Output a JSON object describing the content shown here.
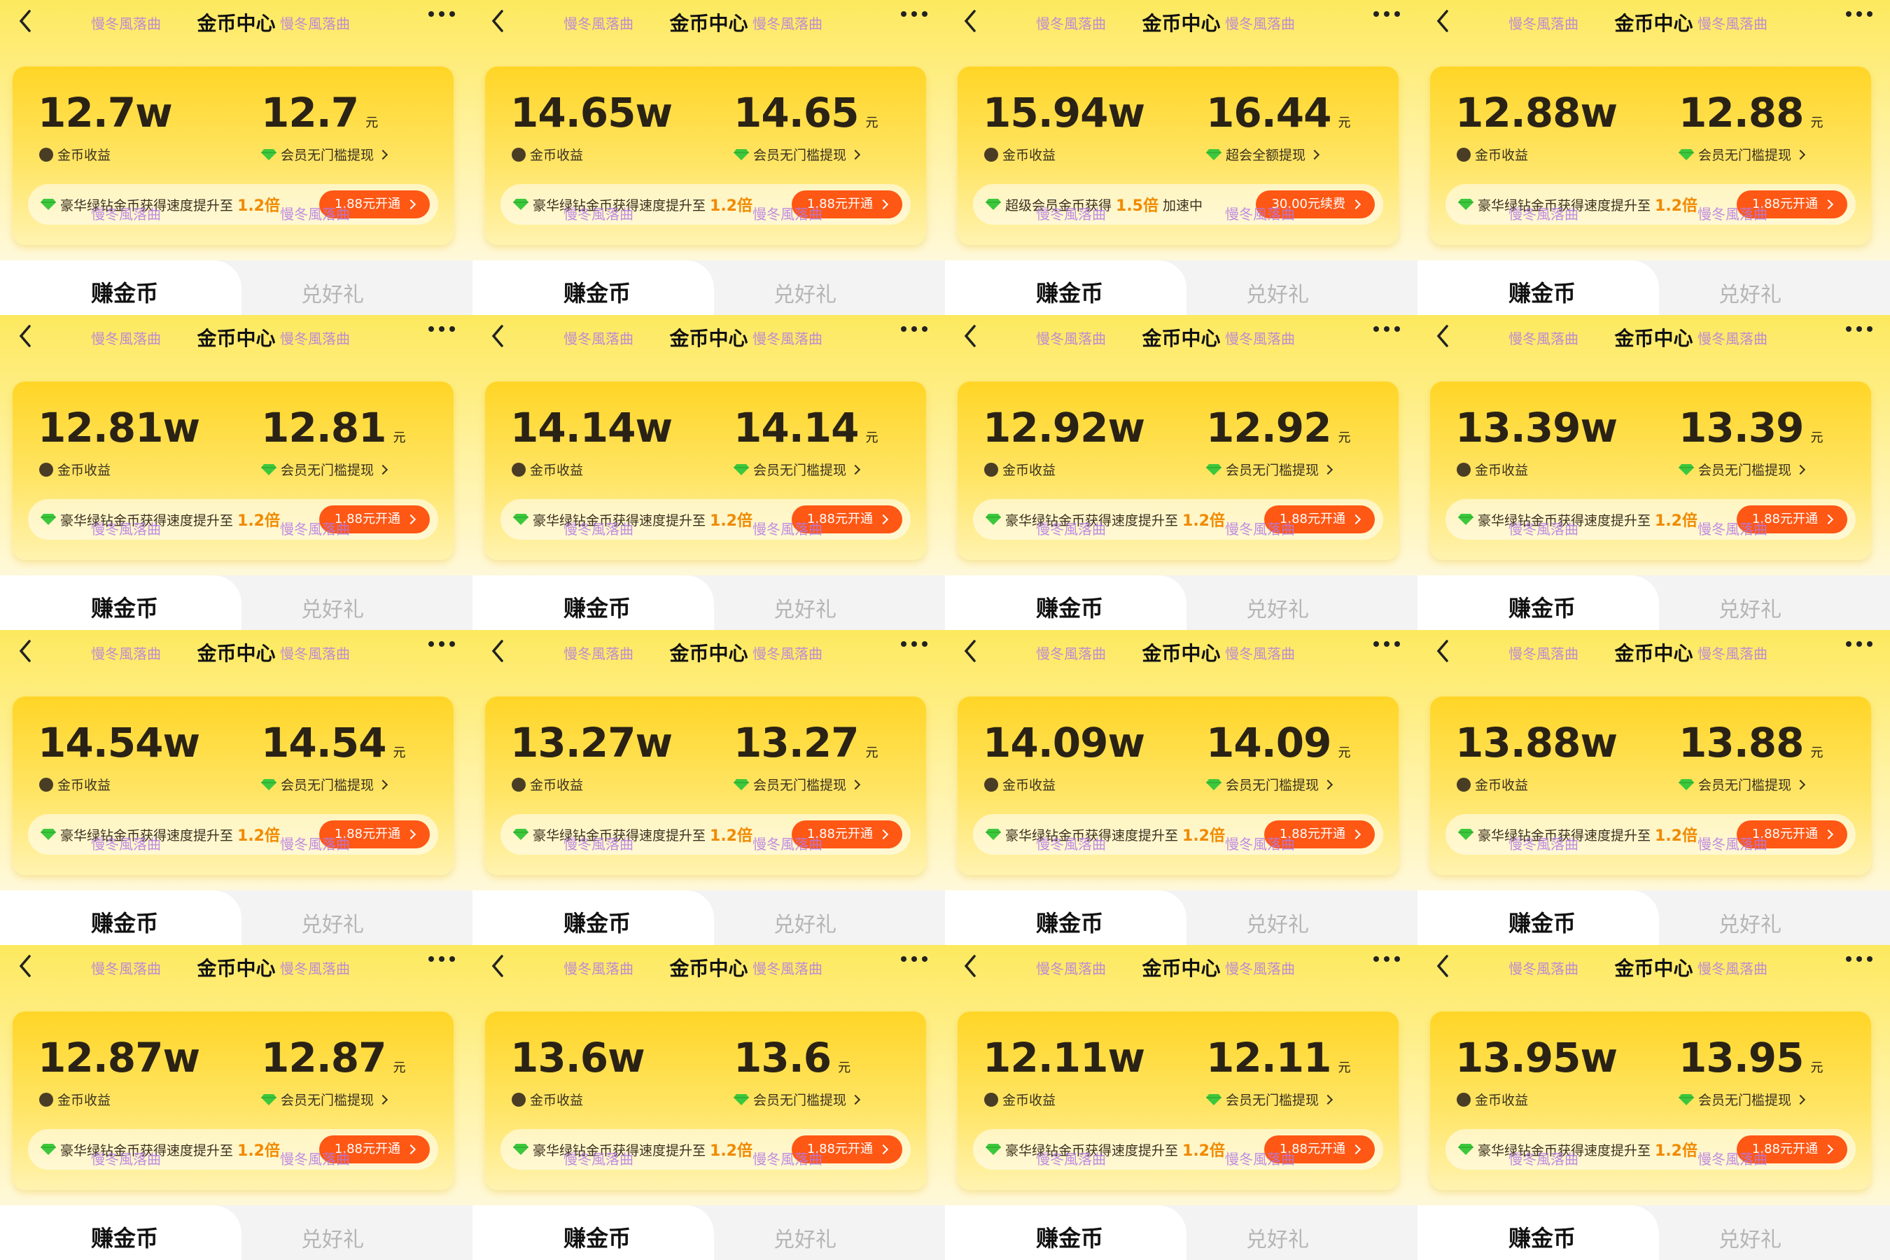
{
  "title": "金币中心",
  "coin_label": "金币收益",
  "unit": "元",
  "tabs": [
    "赚金币",
    "兑好礼"
  ],
  "watermark": "慢冬風落曲",
  "tiles": [
    {
      "coins": "12.7w",
      "cash": "12.7",
      "cash_label": "会员无门槛提现",
      "promo": {
        "text": "豪华绿钻金币获得速度提升至",
        "highlight": "1.2倍"
      },
      "button": "1.88元开通"
    },
    {
      "coins": "14.65w",
      "cash": "14.65",
      "cash_label": "会员无门槛提现",
      "promo": {
        "text": "豪华绿钻金币获得速度提升至",
        "highlight": "1.2倍"
      },
      "button": "1.88元开通"
    },
    {
      "coins": "15.94w",
      "cash": "16.44",
      "cash_label": "超会全额提现",
      "promo": {
        "text": "超级会员金币获得",
        "highlight": "1.5倍",
        "suffix": "加速中"
      },
      "button": "30.00元续费"
    },
    {
      "coins": "12.88w",
      "cash": "12.88",
      "cash_label": "会员无门槛提现",
      "promo": {
        "text": "豪华绿钻金币获得速度提升至",
        "highlight": "1.2倍"
      },
      "button": "1.88元开通"
    },
    {
      "coins": "12.81w",
      "cash": "12.81",
      "cash_label": "会员无门槛提现",
      "promo": {
        "text": "豪华绿钻金币获得速度提升至",
        "highlight": "1.2倍"
      },
      "button": "1.88元开通"
    },
    {
      "coins": "14.14w",
      "cash": "14.14",
      "cash_label": "会员无门槛提现",
      "promo": {
        "text": "豪华绿钻金币获得速度提升至",
        "highlight": "1.2倍"
      },
      "button": "1.88元开通"
    },
    {
      "coins": "12.92w",
      "cash": "12.92",
      "cash_label": "会员无门槛提现",
      "promo": {
        "text": "豪华绿钻金币获得速度提升至",
        "highlight": "1.2倍"
      },
      "button": "1.88元开通"
    },
    {
      "coins": "13.39w",
      "cash": "13.39",
      "cash_label": "会员无门槛提现",
      "promo": {
        "text": "豪华绿钻金币获得速度提升至",
        "highlight": "1.2倍"
      },
      "button": "1.88元开通"
    },
    {
      "coins": "14.54w",
      "cash": "14.54",
      "cash_label": "会员无门槛提现",
      "promo": {
        "text": "豪华绿钻金币获得速度提升至",
        "highlight": "1.2倍"
      },
      "button": "1.88元开通"
    },
    {
      "coins": "13.27w",
      "cash": "13.27",
      "cash_label": "会员无门槛提现",
      "promo": {
        "text": "豪华绿钻金币获得速度提升至",
        "highlight": "1.2倍"
      },
      "button": "1.88元开通"
    },
    {
      "coins": "14.09w",
      "cash": "14.09",
      "cash_label": "会员无门槛提现",
      "promo": {
        "text": "豪华绿钻金币获得速度提升至",
        "highlight": "1.2倍"
      },
      "button": "1.88元开通"
    },
    {
      "coins": "13.88w",
      "cash": "13.88",
      "cash_label": "会员无门槛提现",
      "promo": {
        "text": "豪华绿钻金币获得速度提升至",
        "highlight": "1.2倍"
      },
      "button": "1.88元开通"
    },
    {
      "coins": "12.87w",
      "cash": "12.87",
      "cash_label": "会员无门槛提现",
      "promo": {
        "text": "豪华绿钻金币获得速度提升至",
        "highlight": "1.2倍"
      },
      "button": "1.88元开通"
    },
    {
      "coins": "13.6w",
      "cash": "13.6",
      "cash_label": "会员无门槛提现",
      "promo": {
        "text": "豪华绿钻金币获得速度提升至",
        "highlight": "1.2倍"
      },
      "button": "1.88元开通"
    },
    {
      "coins": "12.11w",
      "cash": "12.11",
      "cash_label": "会员无门槛提现",
      "promo": {
        "text": "豪华绿钻金币获得速度提升至",
        "highlight": "1.2倍"
      },
      "button": "1.88元开通"
    },
    {
      "coins": "13.95w",
      "cash": "13.95",
      "cash_label": "会员无门槛提现",
      "promo": {
        "text": "豪华绿钻金币获得速度提升至",
        "highlight": "1.2倍"
      },
      "button": "1.88元开通"
    }
  ]
}
